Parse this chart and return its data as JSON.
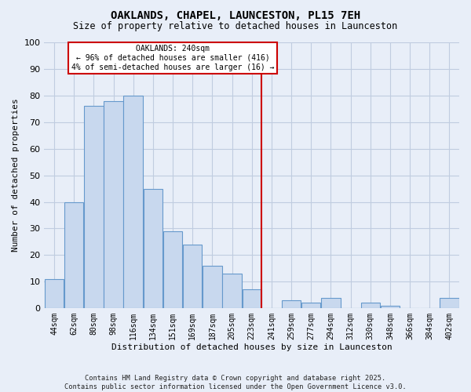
{
  "title": "OAKLANDS, CHAPEL, LAUNCESTON, PL15 7EH",
  "subtitle": "Size of property relative to detached houses in Launceston",
  "xlabel": "Distribution of detached houses by size in Launceston",
  "ylabel": "Number of detached properties",
  "bin_labels": [
    "44sqm",
    "62sqm",
    "80sqm",
    "98sqm",
    "116sqm",
    "134sqm",
    "151sqm",
    "169sqm",
    "187sqm",
    "205sqm",
    "223sqm",
    "241sqm",
    "259sqm",
    "277sqm",
    "294sqm",
    "312sqm",
    "330sqm",
    "348sqm",
    "366sqm",
    "384sqm",
    "402sqm"
  ],
  "bar_heights": [
    11,
    40,
    76,
    78,
    80,
    45,
    29,
    24,
    16,
    13,
    7,
    0,
    3,
    2,
    4,
    0,
    2,
    1,
    0,
    0,
    4
  ],
  "bar_color": "#c8d8ee",
  "bar_edge_color": "#6699cc",
  "vline_x_idx": 11,
  "vline_label": "OAKLANDS: 240sqm",
  "annotation_line1": "← 96% of detached houses are smaller (416)",
  "annotation_line2": "4% of semi-detached houses are larger (16) →",
  "annotation_box_color": "white",
  "annotation_box_edge_color": "#cc0000",
  "vline_color": "#cc0000",
  "ylim": [
    0,
    100
  ],
  "yticks": [
    0,
    10,
    20,
    30,
    40,
    50,
    60,
    70,
    80,
    90,
    100
  ],
  "footnote1": "Contains HM Land Registry data © Crown copyright and database right 2025.",
  "footnote2": "Contains public sector information licensed under the Open Government Licence v3.0.",
  "background_color": "#e8eef8",
  "grid_color": "#c0cce0",
  "plot_bg_color": "#e8eef8"
}
